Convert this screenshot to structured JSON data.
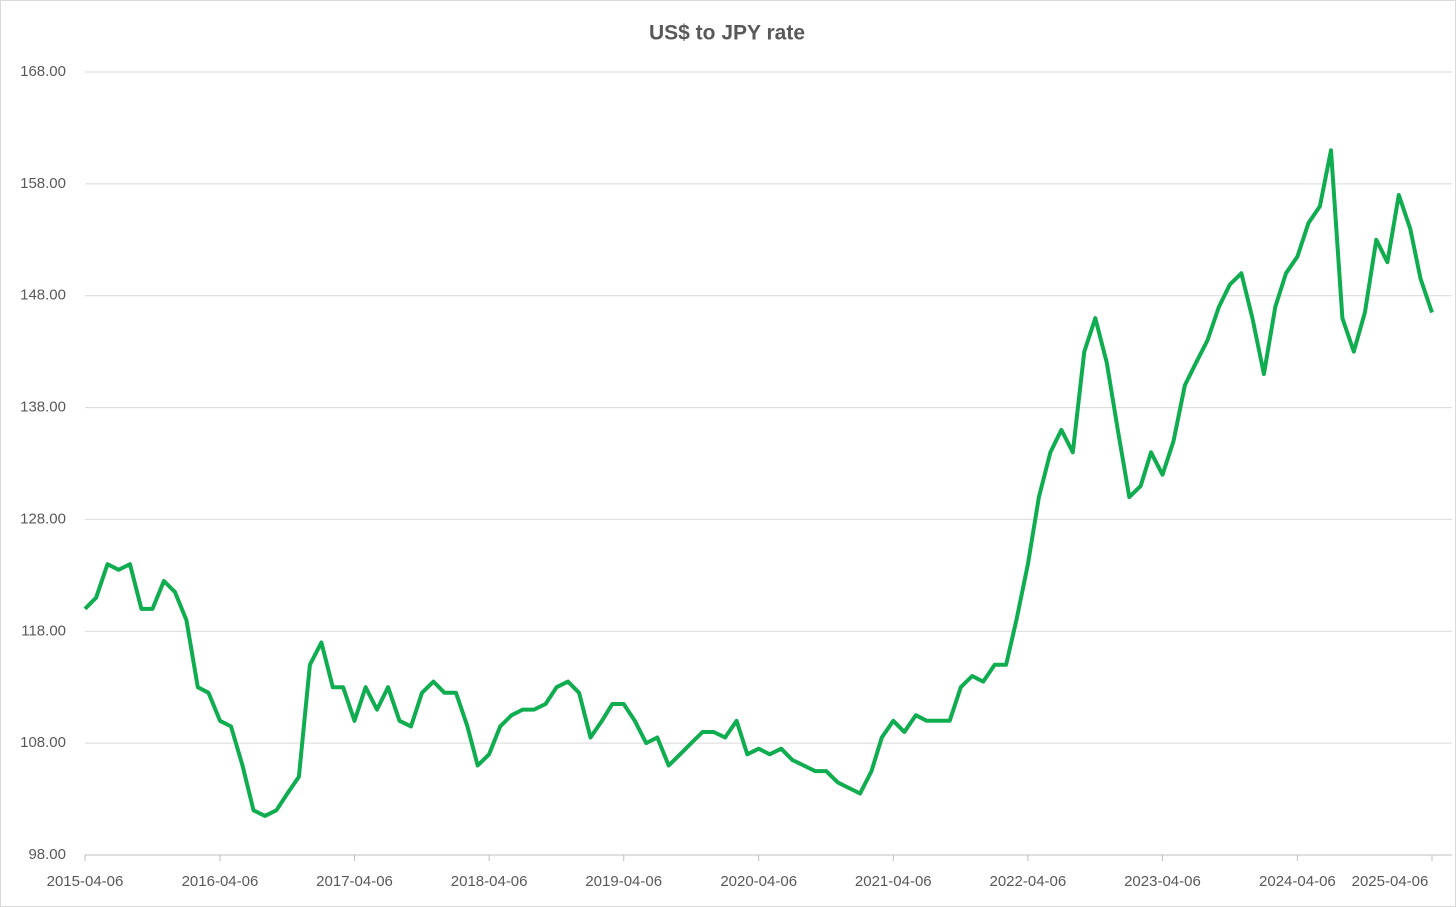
{
  "chart_data": {
    "type": "line",
    "title": "US$ to JPY rate",
    "x": [
      "2015-04-06",
      "2015-05-06",
      "2015-06-06",
      "2015-07-06",
      "2015-08-06",
      "2015-09-06",
      "2015-10-06",
      "2015-11-06",
      "2015-12-06",
      "2016-01-06",
      "2016-02-06",
      "2016-03-06",
      "2016-04-06",
      "2016-05-06",
      "2016-06-06",
      "2016-07-06",
      "2016-08-06",
      "2016-09-06",
      "2016-10-06",
      "2016-11-06",
      "2016-12-06",
      "2017-01-06",
      "2017-02-06",
      "2017-03-06",
      "2017-04-06",
      "2017-05-06",
      "2017-06-06",
      "2017-07-06",
      "2017-08-06",
      "2017-09-06",
      "2017-10-06",
      "2017-11-06",
      "2017-12-06",
      "2018-01-06",
      "2018-02-06",
      "2018-03-06",
      "2018-04-06",
      "2018-05-06",
      "2018-06-06",
      "2018-07-06",
      "2018-08-06",
      "2018-09-06",
      "2018-10-06",
      "2018-11-06",
      "2018-12-06",
      "2019-01-06",
      "2019-02-06",
      "2019-03-06",
      "2019-04-06",
      "2019-05-06",
      "2019-06-06",
      "2019-07-06",
      "2019-08-06",
      "2019-09-06",
      "2019-10-06",
      "2019-11-06",
      "2019-12-06",
      "2020-01-06",
      "2020-02-06",
      "2020-03-06",
      "2020-04-06",
      "2020-05-06",
      "2020-06-06",
      "2020-07-06",
      "2020-08-06",
      "2020-09-06",
      "2020-10-06",
      "2020-11-06",
      "2020-12-06",
      "2021-01-06",
      "2021-02-06",
      "2021-03-06",
      "2021-04-06",
      "2021-05-06",
      "2021-06-06",
      "2021-07-06",
      "2021-08-06",
      "2021-09-06",
      "2021-10-06",
      "2021-11-06",
      "2021-12-06",
      "2022-01-06",
      "2022-02-06",
      "2022-03-06",
      "2022-04-06",
      "2022-05-06",
      "2022-06-06",
      "2022-07-06",
      "2022-08-06",
      "2022-09-06",
      "2022-10-06",
      "2022-11-06",
      "2022-12-06",
      "2023-01-06",
      "2023-02-06",
      "2023-03-06",
      "2023-04-06",
      "2023-05-06",
      "2023-06-06",
      "2023-07-06",
      "2023-08-06",
      "2023-09-06",
      "2023-10-06",
      "2023-11-06",
      "2023-12-06",
      "2024-01-06",
      "2024-02-06",
      "2024-03-06",
      "2024-04-06",
      "2024-05-06",
      "2024-06-06",
      "2024-07-06",
      "2024-08-06",
      "2024-09-06",
      "2024-10-06",
      "2024-11-06",
      "2024-12-06",
      "2025-01-06",
      "2025-02-06",
      "2025-03-06",
      "2025-04-06"
    ],
    "series": [
      {
        "name": "US$ to JPY",
        "color": "#0fad4f",
        "values": [
          120,
          121,
          124,
          123.5,
          124,
          120,
          120,
          122.5,
          121.5,
          119,
          113,
          112.5,
          110,
          109.5,
          106,
          102,
          101.5,
          102,
          103.5,
          105,
          115,
          117,
          113,
          113,
          110,
          113,
          111,
          113,
          110,
          109.5,
          112.5,
          113.5,
          112.5,
          112.5,
          109.5,
          106,
          107,
          109.5,
          110.5,
          111,
          111,
          111.5,
          113,
          113.5,
          112.5,
          108.5,
          110,
          111.5,
          111.5,
          110,
          108,
          108.5,
          106,
          107,
          108,
          109,
          109,
          108.5,
          110,
          107,
          107.5,
          107,
          107.5,
          106.5,
          106,
          105.5,
          105.5,
          104.5,
          104,
          103.5,
          105.5,
          108.5,
          110,
          109,
          110.5,
          110,
          110,
          110,
          113,
          114,
          113.5,
          115,
          115,
          119,
          124,
          130,
          134,
          136,
          134,
          143,
          146,
          142,
          136,
          130,
          131,
          134,
          132,
          135,
          140,
          142,
          144,
          147,
          149,
          150,
          146,
          141,
          147,
          150,
          151.5,
          154.5,
          156,
          161,
          146,
          143,
          146.5,
          153,
          151,
          157,
          154,
          149.5,
          146.5
        ]
      }
    ],
    "xlim": [
      "2015-04-06",
      "2025-04-06"
    ],
    "xticks": [
      "2015-04-06",
      "2016-04-06",
      "2017-04-06",
      "2018-04-06",
      "2019-04-06",
      "2020-04-06",
      "2021-04-06",
      "2022-04-06",
      "2023-04-06",
      "2024-04-06",
      "2025-04-06"
    ],
    "ylim": [
      98,
      168
    ],
    "yticks": [
      {
        "value": 98,
        "label": "98.00"
      },
      {
        "value": 108,
        "label": "108.00"
      },
      {
        "value": 118,
        "label": "118.00"
      },
      {
        "value": 128,
        "label": "128.00"
      },
      {
        "value": 138,
        "label": "138.00"
      },
      {
        "value": 148,
        "label": "148.00"
      },
      {
        "value": 158,
        "label": "158.00"
      },
      {
        "value": 168,
        "label": "168.00"
      }
    ],
    "grid": true
  }
}
